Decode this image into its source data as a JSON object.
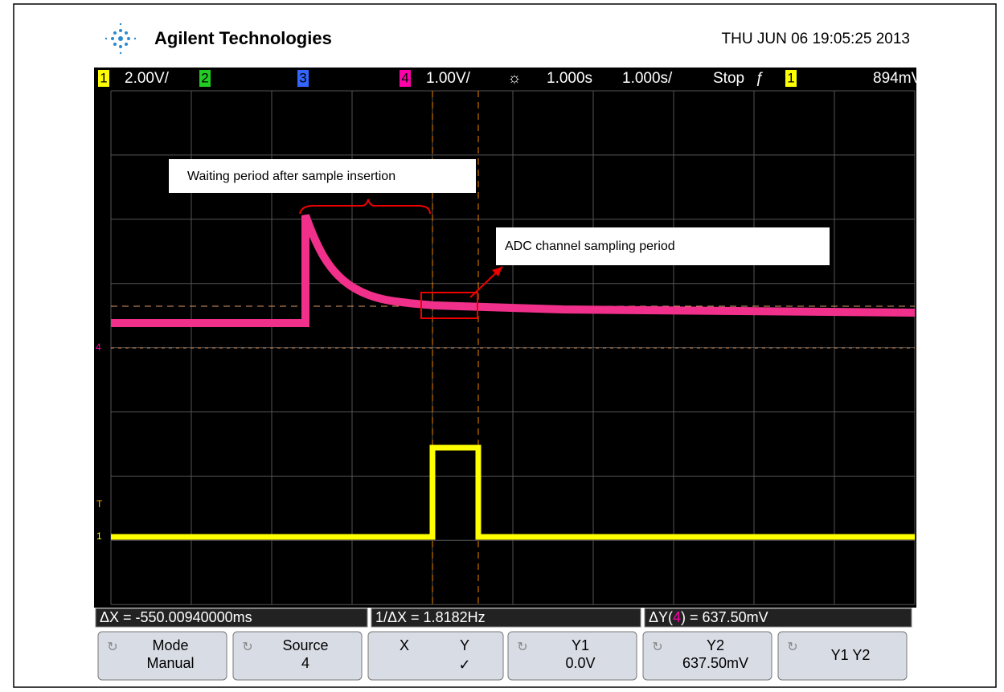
{
  "header": {
    "brand": "Agilent Technologies",
    "datetime": "THU JUN 06 19:05:25 2013"
  },
  "status_bar": {
    "ch1": "1",
    "ch1_scale": "2.00V/",
    "ch2": "2",
    "ch3": "3",
    "ch4": "4",
    "ch4_scale": "1.00V/",
    "delay": "1.000s",
    "timebase": "1.000s/",
    "run_state": "Stop",
    "trigger_source": "1",
    "trigger_level": "894mV"
  },
  "screen": {
    "annotations": [
      "Waiting period after sample insertion",
      "ADC channel sampling period"
    ],
    "markers": {
      "ch4": "4",
      "trigger": "T",
      "ch1": "1"
    }
  },
  "measurements": {
    "delta_x": "ΔX = -550.00940000ms",
    "inverse_delta_x": "1/ΔX = 1.8182Hz",
    "delta_y_prefix": "ΔY(",
    "delta_y_channel": "4",
    "delta_y_suffix": ") = 637.50mV"
  },
  "softkeys": [
    {
      "top": "Mode",
      "bottom": "Manual"
    },
    {
      "top": "Source",
      "bottom": "4"
    },
    {
      "top": "X",
      "middle": "Y",
      "bottom": "✓"
    },
    {
      "top": "Y1",
      "bottom": "0.0V"
    },
    {
      "top": "Y2",
      "bottom": "637.50mV"
    },
    {
      "top": "Y1 Y2"
    }
  ]
}
